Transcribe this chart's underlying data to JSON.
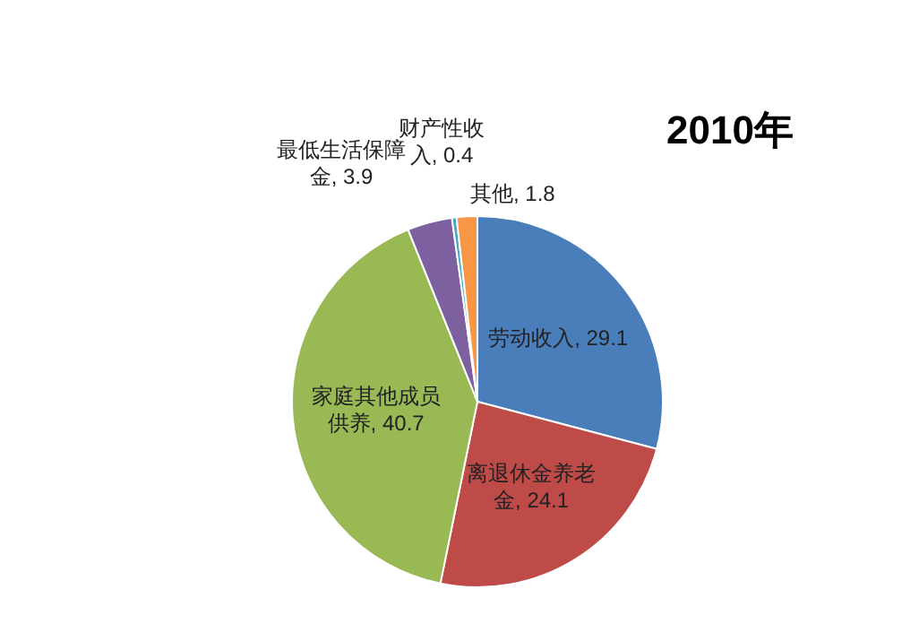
{
  "chart_data": {
    "type": "pie",
    "title": "2010年",
    "categories": [
      "劳动收入",
      "离退休金养老金",
      "家庭其他成员供养",
      "最低生活保障金",
      "财产性收入",
      "其他"
    ],
    "values": [
      29.1,
      24.1,
      40.7,
      3.9,
      0.4,
      1.8
    ],
    "colors": [
      "#4a7ebb",
      "#be4b48",
      "#98b954",
      "#7d60a0",
      "#46aac5",
      "#f79646"
    ],
    "value_labels": [
      ", 29.1",
      ", 24.1",
      ", 40.7",
      ", 3.9",
      ", 0.4",
      ", 1.8"
    ],
    "legend": false
  }
}
